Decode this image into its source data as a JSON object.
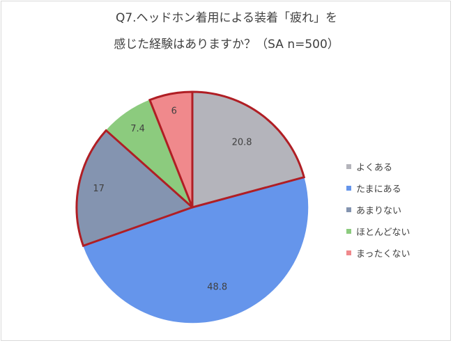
{
  "chart_data": {
    "type": "pie",
    "title_lines": [
      "Q7.ヘッドホン着用による装着「疲れ」を",
      "感じた経験はありますか？（SA n=500）"
    ],
    "categories": [
      "よくある",
      "たまにある",
      "あまりない",
      "ほとんどない",
      "まったくない"
    ],
    "values": [
      20.8,
      48.8,
      17,
      7.4,
      6
    ],
    "value_labels": [
      "20.8",
      "48.8",
      "17",
      "7.4",
      "6"
    ],
    "colors": [
      "#b4b4bb",
      "#6595eb",
      "#8494b0",
      "#8ccb7e",
      "#f0898c"
    ],
    "highlight_outline_color": "#b01e24",
    "highlighted_categories": [
      "よくある",
      "あまりない",
      "まったくない"
    ],
    "start_angle": "12 o'clock",
    "direction": "clockwise",
    "legend_position": "right"
  }
}
